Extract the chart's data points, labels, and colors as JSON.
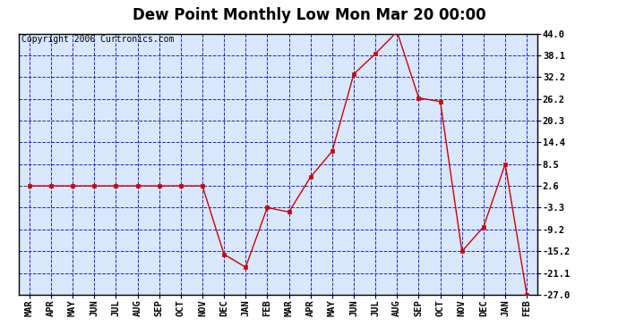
{
  "title": "Dew Point Monthly Low Mon Mar 20 00:00",
  "copyright": "Copyright 2006 Curtronics.com",
  "months": [
    "MAR",
    "APR",
    "MAY",
    "JUN",
    "JUL",
    "AUG",
    "SEP",
    "OCT",
    "NOV",
    "DEC",
    "JAN",
    "FEB",
    "MAR",
    "APR",
    "MAY",
    "JUN",
    "JUL",
    "AUG",
    "SEP",
    "OCT",
    "NOV",
    "DEC",
    "JAN",
    "FEB"
  ],
  "values": [
    2.6,
    2.6,
    2.6,
    2.6,
    2.6,
    2.6,
    2.6,
    2.6,
    2.6,
    -16.0,
    -19.5,
    -3.3,
    -4.5,
    5.0,
    12.0,
    33.0,
    38.5,
    44.5,
    26.5,
    25.5,
    -15.2,
    -8.5,
    8.5,
    -27.0
  ],
  "yticks": [
    44.0,
    38.1,
    32.2,
    26.2,
    20.3,
    14.4,
    8.5,
    2.6,
    -3.3,
    -9.2,
    -15.2,
    -21.1,
    -27.0
  ],
  "line_color": "#cc0000",
  "marker": "s",
  "marker_size": 3,
  "bg_color": "#d8e8ff",
  "grid_color": "#2222cc",
  "title_fontsize": 12,
  "copyright_fontsize": 7,
  "tick_fontsize": 7.5,
  "ylim_min": -27.0,
  "ylim_max": 44.0
}
